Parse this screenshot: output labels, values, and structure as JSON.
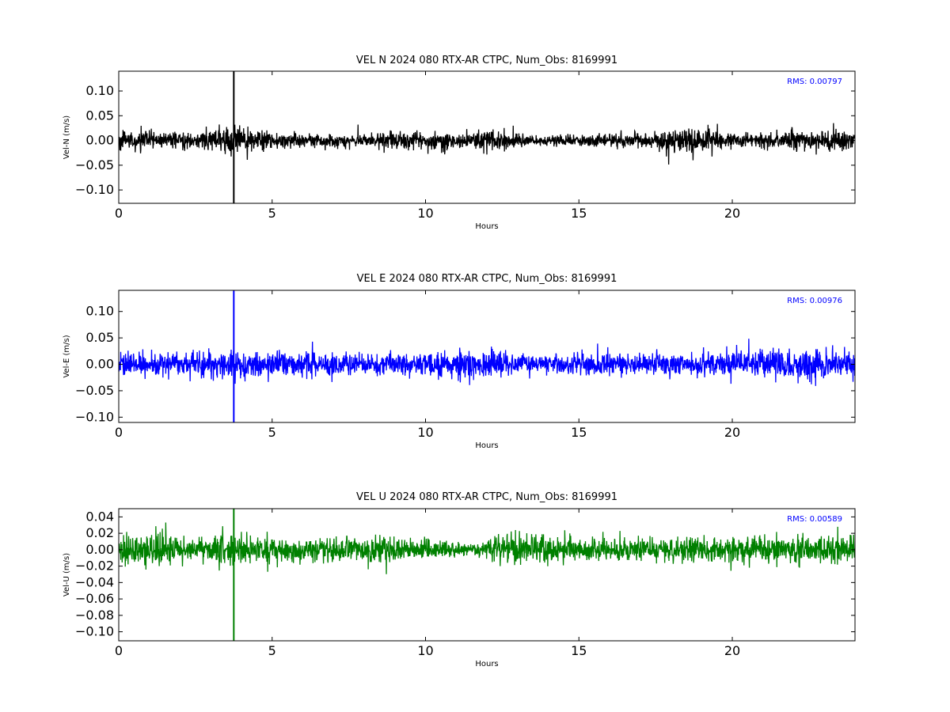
{
  "chart_data": [
    {
      "type": "line",
      "title": "VEL N 2024 080 RTX-AR  CTPC, Num_Obs: 8169991",
      "xlabel": "Hours",
      "ylabel": "Vel-N (m/s)",
      "rms_label": "RMS:  0.00797",
      "color": "#000000",
      "xlim": [
        0,
        24
      ],
      "ylim": [
        -0.127,
        0.14
      ],
      "xticks": [
        0,
        5,
        10,
        15,
        20
      ],
      "xtick_labels": [
        "0",
        "5",
        "10",
        "15",
        "20"
      ],
      "yticks": [
        0.1,
        0.05,
        0.0,
        -0.05,
        -0.1
      ],
      "ytick_labels": [
        "0.10",
        "0.05",
        "0.00",
        "−0.05",
        "−0.10"
      ],
      "noise_amplitude": 0.022,
      "spike": {
        "x": 3.75,
        "y_min": -0.127,
        "y_max": 0.14
      },
      "envelope": [
        {
          "x": 0,
          "a": 1.0
        },
        {
          "x": 2.5,
          "a": 0.8
        },
        {
          "x": 3.2,
          "a": 1.5
        },
        {
          "x": 4.2,
          "a": 1.1
        },
        {
          "x": 7,
          "a": 0.6
        },
        {
          "x": 9.5,
          "a": 1.0
        },
        {
          "x": 11,
          "a": 0.8
        },
        {
          "x": 12,
          "a": 1.3
        },
        {
          "x": 13.5,
          "a": 0.6
        },
        {
          "x": 17,
          "a": 0.7
        },
        {
          "x": 18.8,
          "a": 1.5
        },
        {
          "x": 20,
          "a": 0.7
        },
        {
          "x": 22,
          "a": 1.0
        },
        {
          "x": 24,
          "a": 1.0
        }
      ]
    },
    {
      "type": "line",
      "title": "VEL E 2024 080 RTX-AR  CTPC, Num_Obs: 8169991",
      "xlabel": "Hours",
      "ylabel": "Vel-E (m/s)",
      "rms_label": "RMS:  0.00976",
      "color": "#0000ff",
      "xlim": [
        0,
        24
      ],
      "ylim": [
        -0.11,
        0.14
      ],
      "xticks": [
        0,
        5,
        10,
        15,
        20
      ],
      "xtick_labels": [
        "0",
        "5",
        "10",
        "15",
        "20"
      ],
      "yticks": [
        0.1,
        0.05,
        0.0,
        -0.05,
        -0.1
      ],
      "ytick_labels": [
        "0.10",
        "0.05",
        "0.00",
        "−0.05",
        "−0.10"
      ],
      "noise_amplitude": 0.028,
      "spike": {
        "x": 3.75,
        "y_min": -0.11,
        "y_max": 0.14
      },
      "envelope": [
        {
          "x": 0,
          "a": 1.0
        },
        {
          "x": 2,
          "a": 0.8
        },
        {
          "x": 3.5,
          "a": 1.2
        },
        {
          "x": 5,
          "a": 1.0
        },
        {
          "x": 7,
          "a": 0.9
        },
        {
          "x": 10,
          "a": 0.9
        },
        {
          "x": 12,
          "a": 1.3
        },
        {
          "x": 13.5,
          "a": 0.7
        },
        {
          "x": 15,
          "a": 0.8
        },
        {
          "x": 17,
          "a": 0.7
        },
        {
          "x": 19,
          "a": 1.0
        },
        {
          "x": 21,
          "a": 1.1
        },
        {
          "x": 23,
          "a": 1.2
        },
        {
          "x": 24,
          "a": 1.0
        }
      ]
    },
    {
      "type": "line",
      "title": "VEL U 2024 080 RTX-AR  CTPC, Num_Obs: 8169991",
      "xlabel": "Hours",
      "ylabel": "Vel-U (m/s)",
      "rms_label": "RMS:  0.00589",
      "color": "#008000",
      "xlim": [
        0,
        24
      ],
      "ylim": [
        -0.111,
        0.05
      ],
      "xticks": [
        0,
        5,
        10,
        15,
        20
      ],
      "xtick_labels": [
        "0",
        "5",
        "10",
        "15",
        "20"
      ],
      "yticks": [
        0.04,
        0.02,
        0.0,
        -0.02,
        -0.04,
        -0.06,
        -0.08,
        -0.1
      ],
      "ytick_labels": [
        "0.04",
        "0.02",
        "0.00",
        "−0.02",
        "−0.04",
        "−0.06",
        "−0.08",
        "−0.10"
      ],
      "noise_amplitude": 0.018,
      "spike": {
        "x": 3.75,
        "y_min": -0.111,
        "y_max": 0.05
      },
      "envelope": [
        {
          "x": 0,
          "a": 1.1
        },
        {
          "x": 1.5,
          "a": 1.3
        },
        {
          "x": 2.5,
          "a": 0.6
        },
        {
          "x": 3.3,
          "a": 1.2
        },
        {
          "x": 5,
          "a": 1.0
        },
        {
          "x": 7,
          "a": 0.9
        },
        {
          "x": 9,
          "a": 1.0
        },
        {
          "x": 11.5,
          "a": 0.5
        },
        {
          "x": 13,
          "a": 1.3
        },
        {
          "x": 15,
          "a": 1.0
        },
        {
          "x": 17,
          "a": 0.9
        },
        {
          "x": 19,
          "a": 0.9
        },
        {
          "x": 21,
          "a": 1.1
        },
        {
          "x": 24,
          "a": 1.0
        }
      ]
    }
  ]
}
